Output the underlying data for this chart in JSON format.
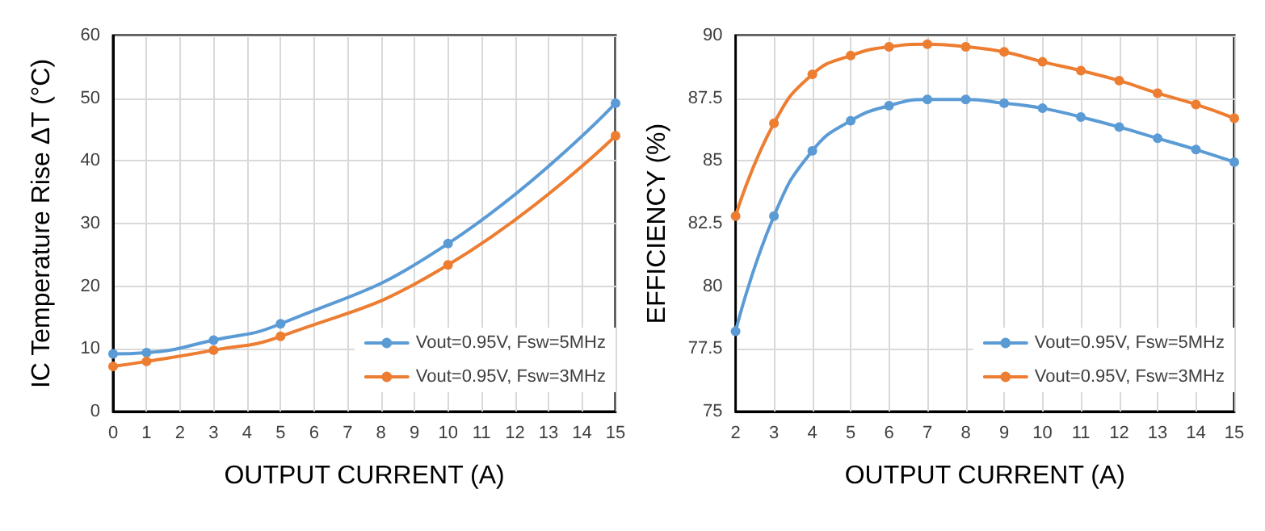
{
  "chart_data": [
    {
      "type": "line",
      "xlabel": "OUTPUT CURRENT (A)",
      "ylabel": "IC Temperature Rise ΔT (°C)",
      "xlim": [
        0,
        15
      ],
      "xticks": [
        0,
        1,
        2,
        3,
        4,
        5,
        6,
        7,
        8,
        9,
        10,
        11,
        12,
        13,
        14,
        15
      ],
      "ylim": [
        0,
        60
      ],
      "yticks": [
        0,
        10,
        20,
        30,
        40,
        50,
        60
      ],
      "grid": true,
      "legend": "bottom right",
      "marker": "circle",
      "line_style": "solid",
      "series": [
        {
          "name": "Vout=0.95V, Fsw=5MHz",
          "color": "#5b9bd5",
          "x": [
            0,
            1,
            3,
            5,
            10,
            15
          ],
          "values": [
            9.2,
            9.4,
            11.4,
            14,
            26.8,
            49.2
          ]
        },
        {
          "name": "Vout=0.95V, Fsw=3MHz",
          "color": "#ed7d31",
          "x": [
            0,
            1,
            3,
            5,
            10,
            15
          ],
          "values": [
            7.2,
            8,
            9.8,
            12,
            23.4,
            44
          ]
        }
      ]
    },
    {
      "type": "line",
      "xlabel": "OUTPUT CURRENT (A)",
      "ylabel": "EFFICIENCY (%)",
      "xlim": [
        2,
        15
      ],
      "xticks": [
        2,
        3,
        4,
        5,
        6,
        7,
        8,
        9,
        10,
        11,
        12,
        13,
        14,
        15
      ],
      "ylim": [
        75,
        90
      ],
      "yticks": [
        75,
        77.5,
        80,
        82.5,
        85,
        87.5,
        90
      ],
      "grid": true,
      "legend": "bottom right",
      "marker": "circle",
      "line_style": "solid",
      "series": [
        {
          "name": "Vout=0.95V, Fsw=5MHz",
          "color": "#5b9bd5",
          "x": [
            2,
            3,
            4,
            5,
            6,
            7,
            8,
            9,
            10,
            11,
            12,
            13,
            14,
            15
          ],
          "values": [
            78.2,
            82.8,
            85.4,
            86.6,
            87.2,
            87.45,
            87.45,
            87.3,
            87.1,
            86.75,
            86.35,
            85.9,
            85.45,
            84.95
          ]
        },
        {
          "name": "Vout=0.95V, Fsw=3MHz",
          "color": "#ed7d31",
          "x": [
            2,
            3,
            4,
            5,
            6,
            7,
            8,
            9,
            10,
            11,
            12,
            13,
            14,
            15
          ],
          "values": [
            82.8,
            86.5,
            88.45,
            89.2,
            89.55,
            89.65,
            89.55,
            89.35,
            88.95,
            88.6,
            88.2,
            87.7,
            87.25,
            86.7
          ]
        }
      ]
    }
  ]
}
